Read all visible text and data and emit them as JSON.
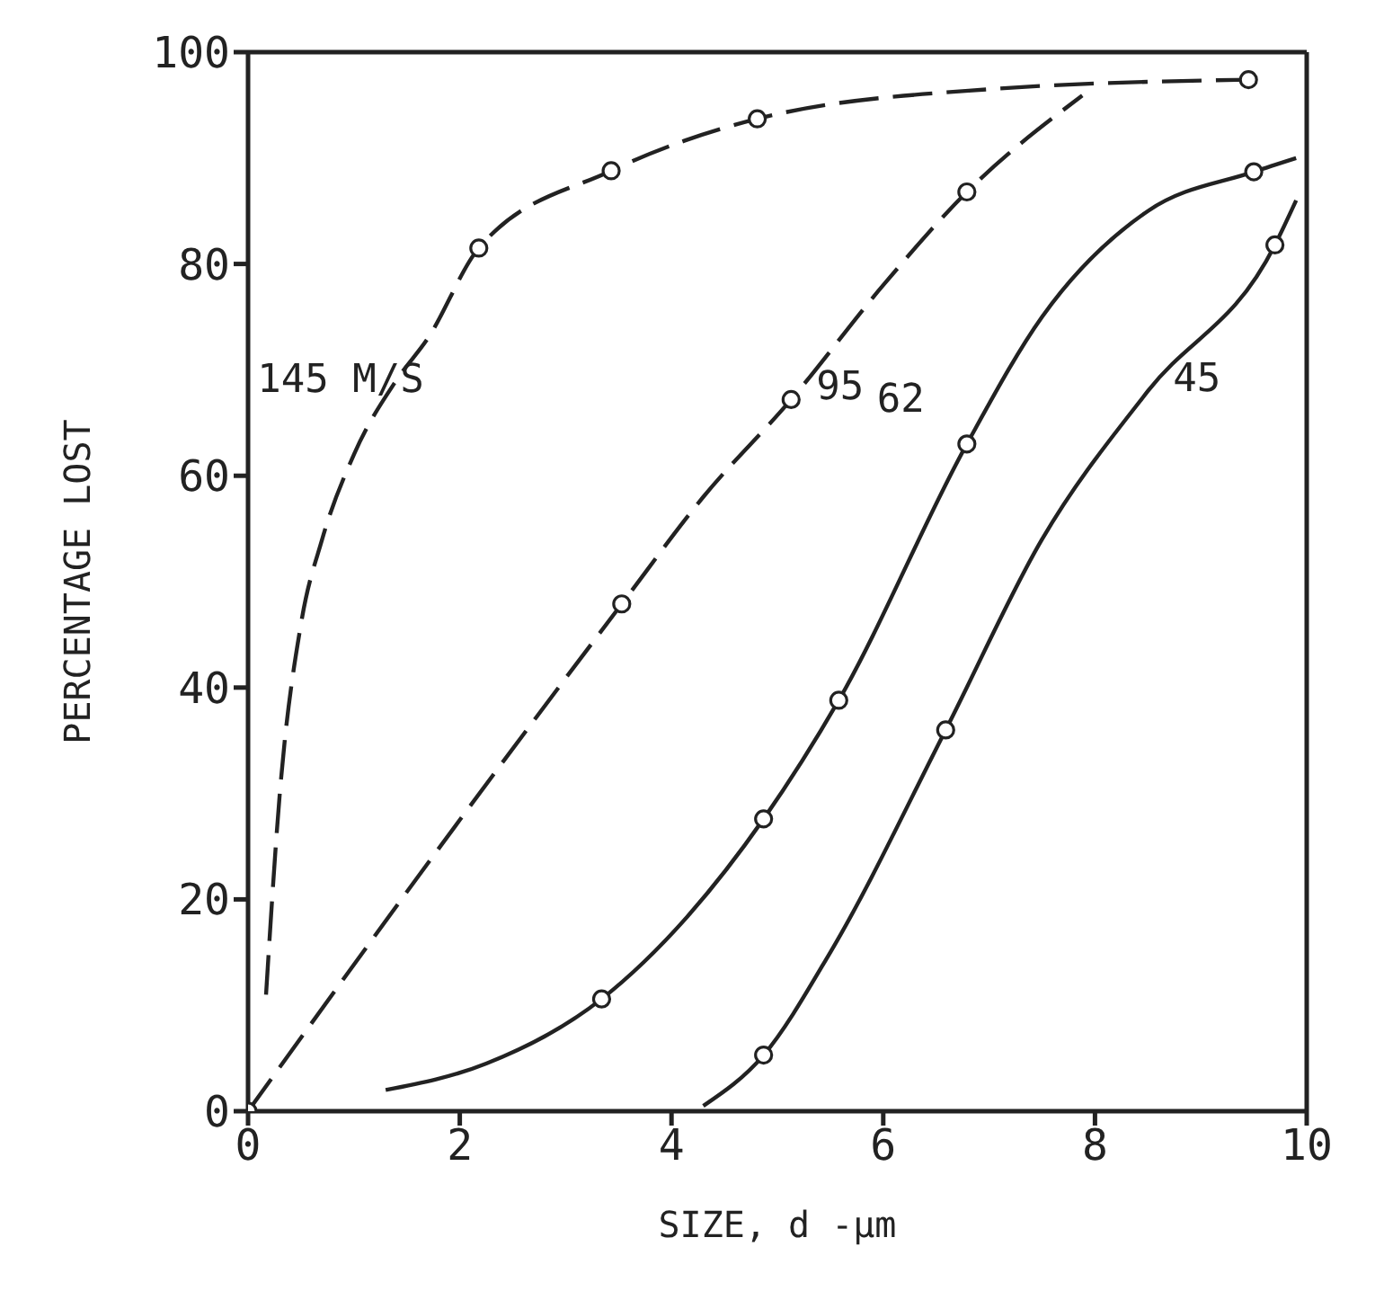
{
  "chart_data": {
    "type": "line",
    "xlabel": "SIZE, d -μm",
    "ylabel": "PERCENTAGE LOST",
    "xlim": [
      0,
      10
    ],
    "ylim": [
      0,
      100
    ],
    "xticks": [
      0,
      2,
      4,
      6,
      8,
      10
    ],
    "yticks": [
      0,
      20,
      40,
      60,
      80,
      100
    ],
    "grid": false,
    "legend": false,
    "series": [
      {
        "name": "145 M/S",
        "color": "#222222",
        "line_style": "dashed",
        "marker": "none",
        "x": [
          0.17,
          0.3,
          0.5,
          0.7,
          1.0,
          1.4,
          1.7,
          2.18,
          3.43,
          4.81,
          7,
          9.45
        ],
        "values": [
          11,
          30,
          46,
          54,
          62,
          69,
          73,
          81.5,
          88.8,
          93.7,
          96.5,
          97.4
        ]
      },
      {
        "name": "95",
        "color": "#222222",
        "line_style": "dashed",
        "marker": "none",
        "x": [
          0,
          2,
          3.53,
          4.3,
          5.13,
          6,
          6.79,
          7.88
        ],
        "values": [
          0,
          27.5,
          47.9,
          58,
          67.2,
          78,
          86.8,
          95.9
        ]
      },
      {
        "name": "62",
        "color": "#222222",
        "line_style": "solid",
        "marker": "none",
        "x": [
          1.3,
          2.25,
          3.34,
          4.87,
          5.58,
          6.79,
          7.5,
          8.5,
          9.5,
          9.9
        ],
        "values": [
          2,
          4.5,
          10.6,
          27.6,
          38.8,
          63,
          75,
          85,
          88.7,
          90
        ]
      },
      {
        "name": "45",
        "color": "#222222",
        "line_style": "solid",
        "marker": "none",
        "x": [
          4.3,
          4.87,
          5.5,
          6.59,
          7.5,
          8.5,
          9.7,
          9.9
        ],
        "values": [
          0.5,
          5.3,
          15,
          36,
          54,
          68,
          81.8,
          86
        ]
      },
      {
        "type": "scatter",
        "color": "#222222",
        "marker": "circle",
        "x": [
          0,
          2.18,
          3.43,
          4.81,
          9.45,
          3.53,
          5.13,
          6.79,
          3.34,
          4.87,
          5.58,
          6.79,
          9.5,
          4.87,
          6.59,
          9.7
        ],
        "values": [
          0,
          81.5,
          88.8,
          93.7,
          97.4,
          47.9,
          67.2,
          86.8,
          10.6,
          27.6,
          38.8,
          63,
          88.7,
          5.3,
          36,
          81.8
        ]
      }
    ]
  }
}
